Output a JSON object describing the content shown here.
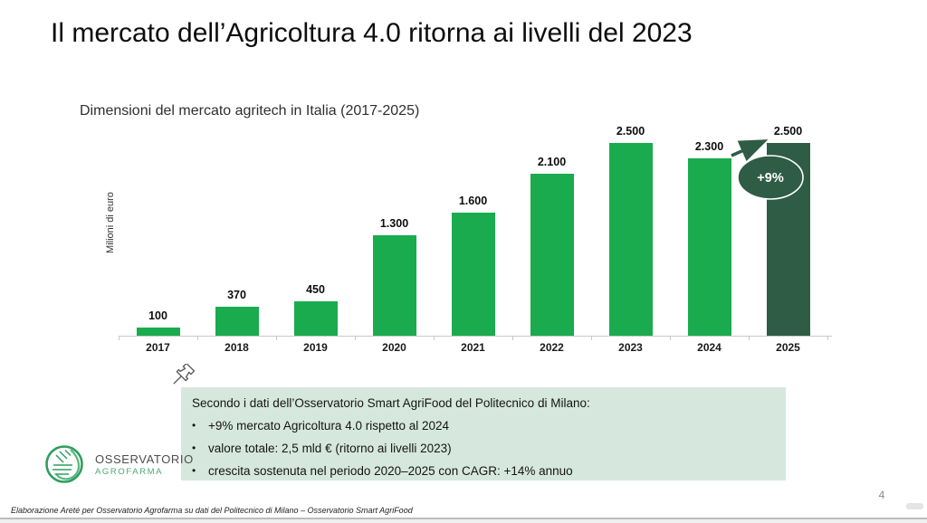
{
  "slide": {
    "title": "Il mercato dell’Agricoltura 4.0 ritorna ai livelli del 2023",
    "footer": "Elaborazione Areté per Osservatorio Agrofarma su dati del Politecnico di Milano – Osservatorio Smart AgriFood",
    "page_number": "4"
  },
  "chart_data": {
    "type": "bar",
    "title": "Dimensioni del mercato agritech in Italia (2017-2025)",
    "ylabel": "Milioni di euro",
    "xlabel": "",
    "categories": [
      "2017",
      "2018",
      "2019",
      "2020",
      "2021",
      "2022",
      "2023",
      "2024",
      "2025"
    ],
    "values": [
      100,
      370,
      450,
      1300,
      1600,
      2100,
      2500,
      2300,
      2500
    ],
    "value_labels": [
      "100",
      "370",
      "450",
      "1.300",
      "1.600",
      "2.100",
      "2.500",
      "2.300",
      "2.500"
    ],
    "ylim": [
      0,
      2500
    ],
    "grid": false,
    "legend": "none",
    "bar_color": "#1aab4e",
    "highlight_color": "#2e5c44",
    "highlight_index": 8,
    "badge_label": "+9%"
  },
  "callout": {
    "background": "#d6e8dd",
    "intro": "Secondo i dati dell’Osservatorio Smart AgriFood del Politecnico di Milano:",
    "bullet_glyph": "•",
    "bullets": [
      "+9% mercato Agricoltura 4.0 rispetto al 2024",
      "valore totale: 2,5 mld € (ritorno ai livelli 2023)",
      "crescita sostenuta nel periodo 2020–2025 con CAGR: +14% annuo"
    ]
  },
  "logo": {
    "line1": "OSSERVATORIO",
    "line2": "AGROFARMA",
    "emblem_color": "#2f9e5f"
  }
}
